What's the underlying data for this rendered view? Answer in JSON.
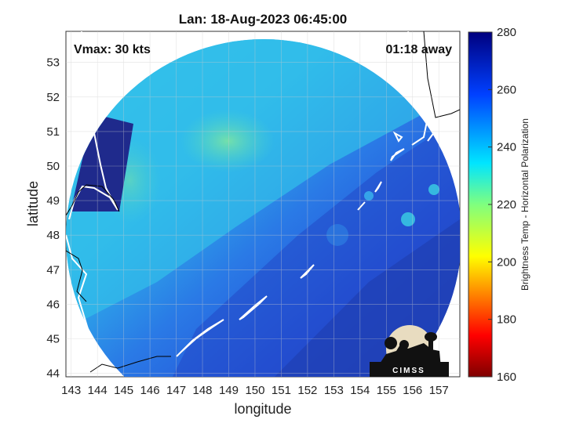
{
  "title": "Lan: 18-Aug-2023 06:45:00",
  "annotations": {
    "vmax": "Vmax: 30 kts",
    "time_away": "01:18 away"
  },
  "axes": {
    "xlabel": "longitude",
    "ylabel": "latitude",
    "xlim": [
      142.8,
      157.8
    ],
    "ylim": [
      43.9,
      53.9
    ],
    "xticks": [
      143,
      144,
      145,
      146,
      147,
      148,
      149,
      150,
      151,
      152,
      153,
      154,
      155,
      156,
      157
    ],
    "yticks": [
      44,
      45,
      46,
      47,
      48,
      49,
      50,
      51,
      52,
      53
    ],
    "grid": true
  },
  "colorbar": {
    "label": "Brightness Temp - Horizontal Polarization",
    "min": 160,
    "max": 280,
    "ticks": [
      160,
      180,
      200,
      220,
      240,
      260,
      280
    ],
    "colormap": "jet"
  },
  "logo": {
    "text": "CIMSS"
  },
  "colors": {
    "cold_dark_blue": "#1f2a8c",
    "mid_blue": "#2a63e0",
    "cyan": "#2fc3e8",
    "light_green": "#6fe3a0",
    "coastline": "#ffffff"
  }
}
